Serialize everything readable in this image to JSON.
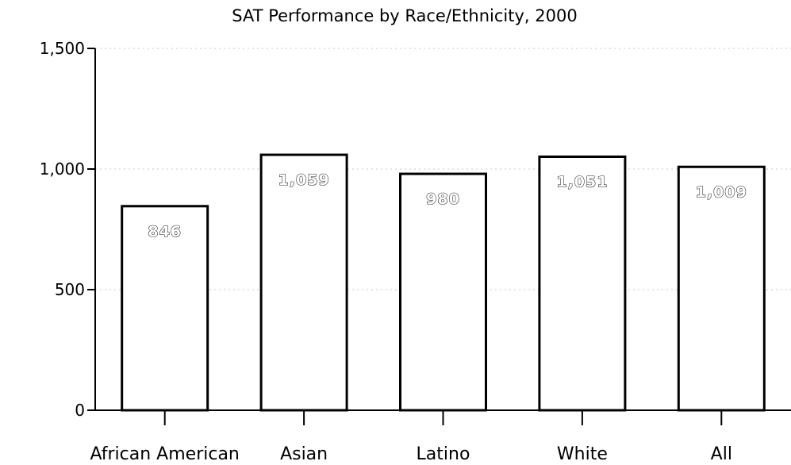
{
  "chart_data": {
    "type": "bar",
    "title": "SAT Performance by Race/Ethnicity, 2000",
    "xlabel": "",
    "ylabel": "",
    "categories": [
      "African American",
      "Asian",
      "Latino",
      "White",
      "All"
    ],
    "values": [
      846,
      1059,
      980,
      1051,
      1009
    ],
    "data_labels": [
      "846",
      "1,059",
      "980",
      "1,051",
      "1,009"
    ],
    "ylim": [
      0,
      1500
    ],
    "yticks": [
      0,
      500,
      1000,
      1500
    ],
    "ytick_labels": [
      "0",
      "500",
      "1,000",
      "1,500"
    ],
    "grid": true,
    "legend": "none",
    "colors": {
      "bar_fill": "#ffffff",
      "bar_stroke": "#000000",
      "grid": "#c8c8c8",
      "axis": "#000000"
    }
  }
}
